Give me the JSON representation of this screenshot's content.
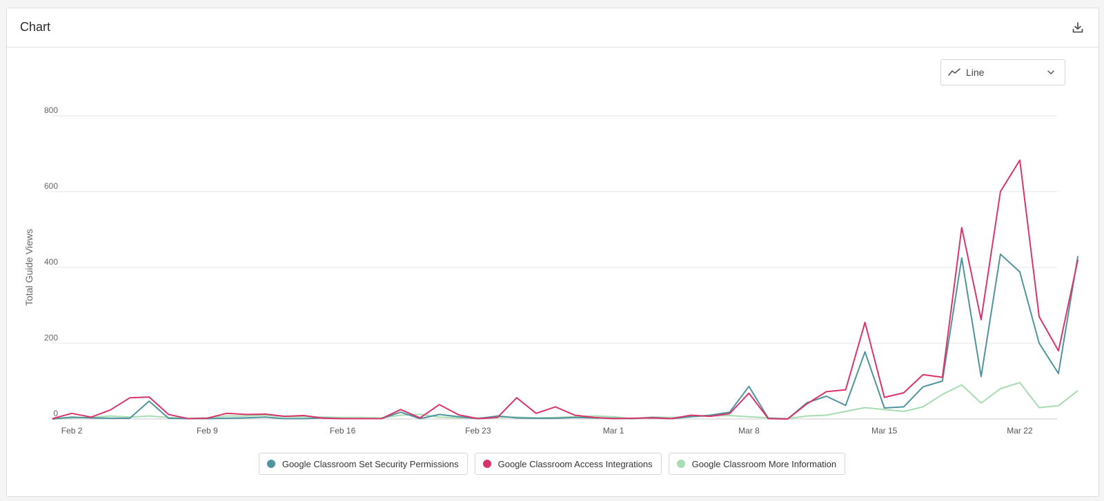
{
  "header": {
    "title": "Chart",
    "download_icon": "download-icon"
  },
  "chart_type_select": {
    "icon": "line-chart-icon",
    "label": "Line",
    "chevron": "chevron-down-icon"
  },
  "colors": {
    "security": "#4f939f",
    "access": "#d9346a",
    "info": "#a6dcb0"
  },
  "chart_data": {
    "type": "line",
    "ylabel": "Total Guide Views",
    "xlabel": "",
    "ylim": [
      0,
      800
    ],
    "yticks": [
      0,
      200,
      400,
      600,
      800
    ],
    "x_start": "Feb 1",
    "x_end": "Mar 23",
    "xticks": [
      {
        "day": 2,
        "label": "Feb 2"
      },
      {
        "day": 9,
        "label": "Feb 9"
      },
      {
        "day": 16,
        "label": "Feb 16"
      },
      {
        "day": 23,
        "label": "Feb 23"
      },
      {
        "day": 30,
        "label": "Mar 1"
      },
      {
        "day": 37,
        "label": "Mar 8"
      },
      {
        "day": 44,
        "label": "Mar 15"
      },
      {
        "day": 51,
        "label": "Mar 22"
      }
    ],
    "series": [
      {
        "name": "Google Classroom Set Security Permissions",
        "color": "#4f939f",
        "values": [
          0,
          5,
          3,
          2,
          2,
          47,
          2,
          1,
          1,
          2,
          3,
          5,
          1,
          1,
          3,
          1,
          1,
          1,
          18,
          1,
          12,
          6,
          1,
          8,
          3,
          2,
          2,
          4,
          3,
          2,
          1,
          4,
          1,
          6,
          10,
          18,
          86,
          2,
          0,
          43,
          60,
          36,
          177,
          29,
          32,
          85,
          100,
          425,
          112,
          435,
          388,
          200,
          120,
          430
        ]
      },
      {
        "name": "Google Classroom Access Integrations",
        "color": "#d9346a",
        "values": [
          1,
          15,
          5,
          24,
          56,
          58,
          12,
          1,
          2,
          15,
          12,
          13,
          7,
          9,
          2,
          1,
          1,
          1,
          25,
          3,
          38,
          11,
          1,
          4,
          56,
          15,
          32,
          10,
          4,
          1,
          2,
          3,
          1,
          10,
          7,
          14,
          68,
          1,
          0,
          40,
          72,
          77,
          255,
          57,
          69,
          117,
          110,
          505,
          262,
          600,
          683,
          270,
          180,
          420
        ]
      },
      {
        "name": "Google Classroom More Information",
        "color": "#a6dcb0",
        "values": [
          0,
          3,
          4,
          8,
          5,
          8,
          4,
          2,
          3,
          8,
          8,
          10,
          6,
          6,
          5,
          4,
          4,
          3,
          10,
          12,
          5,
          3,
          3,
          4,
          5,
          3,
          4,
          6,
          8,
          6,
          1,
          5,
          4,
          6,
          8,
          9,
          6,
          3,
          1,
          8,
          10,
          20,
          30,
          25,
          20,
          32,
          65,
          90,
          42,
          80,
          96,
          30,
          35,
          75
        ]
      }
    ]
  }
}
